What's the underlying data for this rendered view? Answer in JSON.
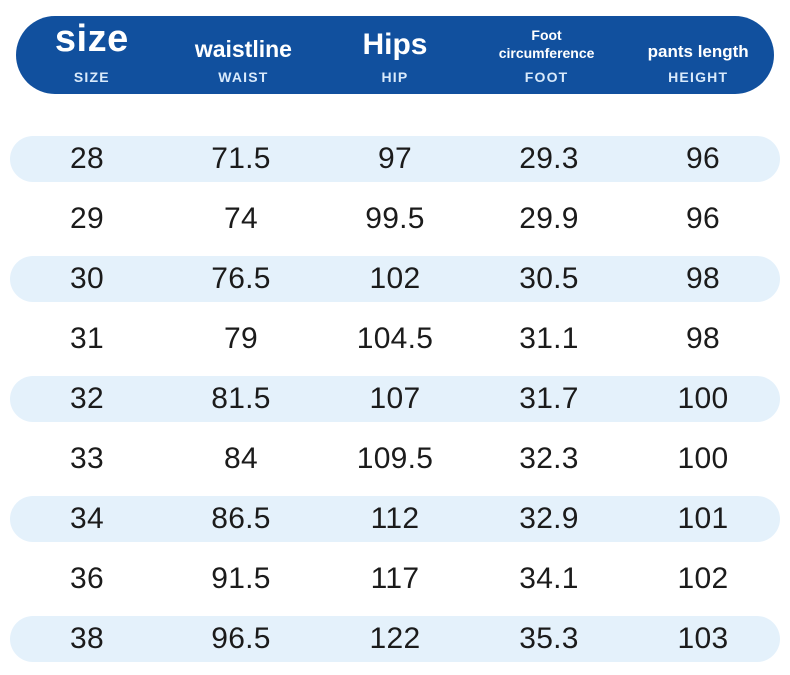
{
  "colors": {
    "page_bg": "#ffffff",
    "header_bg": "#11509e",
    "header_text": "#ffffff",
    "header_subtext": "#d9eafb",
    "row_alt_bg": "#e4f1fb",
    "row_text": "#1b1b1b"
  },
  "header": {
    "columns": [
      {
        "label": "size",
        "sublabel": "SIZE"
      },
      {
        "label": "waistline",
        "sublabel": "WAIST"
      },
      {
        "label": "Hips",
        "sublabel": "HIP"
      },
      {
        "label": "Foot circumference",
        "sublabel": "FOOT"
      },
      {
        "label": "pants length",
        "sublabel": "HEIGHT"
      }
    ]
  },
  "chart_data": {
    "type": "table",
    "columns": [
      "size (SIZE)",
      "waistline (WAIST)",
      "Hips (HIP)",
      "Foot circumference (FOOT)",
      "pants length (HEIGHT)"
    ],
    "rows": [
      [
        28,
        71.5,
        97,
        29.3,
        96
      ],
      [
        29,
        74,
        99.5,
        29.9,
        96
      ],
      [
        30,
        76.5,
        102,
        30.5,
        98
      ],
      [
        31,
        79,
        104.5,
        31.1,
        98
      ],
      [
        32,
        81.5,
        107,
        31.7,
        100
      ],
      [
        33,
        84,
        109.5,
        32.3,
        100
      ],
      [
        34,
        86.5,
        112,
        32.9,
        101
      ],
      [
        36,
        91.5,
        117,
        34.1,
        102
      ],
      [
        38,
        96.5,
        122,
        35.3,
        103
      ]
    ],
    "layout_hints": {
      "alternating_row_highlight": "odd rows (1st, 3rd, ...) have light blue pill background",
      "header_style": "navy rounded pill, white text, caps sublabels"
    }
  }
}
